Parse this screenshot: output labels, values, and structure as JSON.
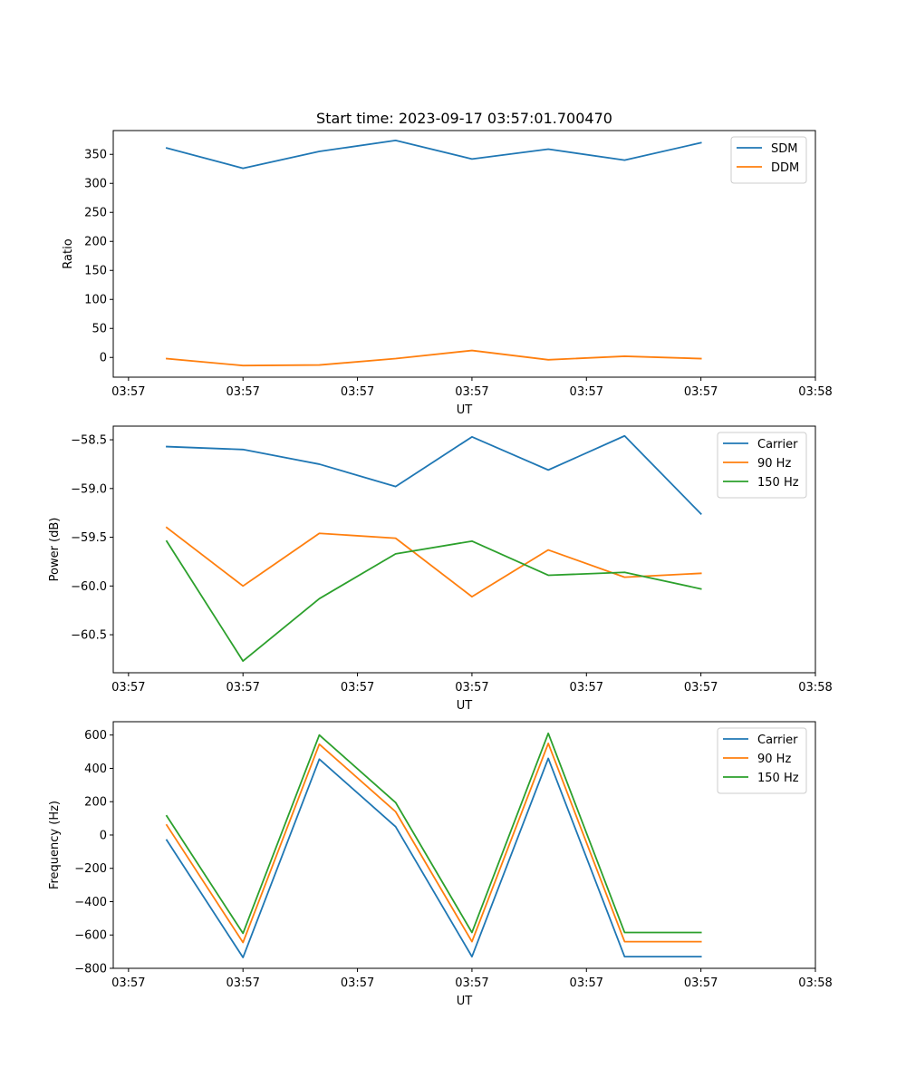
{
  "figure": {
    "title": "Start time: 2023-09-17 03:57:01.700470"
  },
  "chart_data": [
    {
      "type": "line",
      "title": "Start time: 2023-09-17 03:57:01.700470",
      "xlabel": "UT",
      "ylabel": "Ratio",
      "x": [
        0.5,
        1.5,
        2.5,
        3.5,
        4.5,
        5.5,
        6.5,
        7.5
      ],
      "xlim": [
        -0.2,
        9.0
      ],
      "xticks": [
        0,
        1.5,
        3,
        4.5,
        6,
        7.5,
        9
      ],
      "xtick_labels": [
        "03:57",
        "03:57",
        "03:57",
        "03:57",
        "03:57",
        "03:57",
        "03:58"
      ],
      "ylim": [
        -34,
        391
      ],
      "yticks": [
        0,
        50,
        100,
        150,
        200,
        250,
        300,
        350
      ],
      "ytick_labels": [
        "0",
        "50",
        "100",
        "150",
        "200",
        "250",
        "300",
        "350"
      ],
      "grid": false,
      "legend_position": "top-right",
      "series": [
        {
          "name": "SDM",
          "color": "#1f77b4",
          "values": [
            361,
            326,
            355,
            374,
            342,
            359,
            340,
            370
          ]
        },
        {
          "name": "DDM",
          "color": "#ff7f0e",
          "values": [
            -2,
            -14,
            -13,
            -2,
            12,
            -4,
            2,
            -2
          ]
        }
      ]
    },
    {
      "type": "line",
      "title": "",
      "xlabel": "UT",
      "ylabel": "Power (dB)",
      "x": [
        0.5,
        1.5,
        2.5,
        3.5,
        4.5,
        5.5,
        6.5,
        7.5
      ],
      "xlim": [
        -0.2,
        9.0
      ],
      "xticks": [
        0,
        1.5,
        3,
        4.5,
        6,
        7.5,
        9
      ],
      "xtick_labels": [
        "03:57",
        "03:57",
        "03:57",
        "03:57",
        "03:57",
        "03:57",
        "03:58"
      ],
      "ylim": [
        -60.89,
        -58.36
      ],
      "yticks": [
        -58.5,
        -59.0,
        -59.5,
        -60.0,
        -60.5
      ],
      "ytick_labels": [
        "−58.5",
        "−59.0",
        "−59.5",
        "−60.0",
        "−60.5"
      ],
      "grid": false,
      "legend_position": "top-right",
      "series": [
        {
          "name": "Carrier",
          "color": "#1f77b4",
          "values": [
            -58.57,
            -58.6,
            -58.75,
            -58.98,
            -58.47,
            -58.81,
            -58.46,
            -59.26
          ]
        },
        {
          "name": "90 Hz",
          "color": "#ff7f0e",
          "values": [
            -59.4,
            -60.0,
            -59.46,
            -59.51,
            -60.11,
            -59.63,
            -59.91,
            -59.87
          ]
        },
        {
          "name": "150 Hz",
          "color": "#2ca02c",
          "values": [
            -59.54,
            -60.77,
            -60.13,
            -59.67,
            -59.54,
            -59.89,
            -59.86,
            -60.03
          ]
        }
      ]
    },
    {
      "type": "line",
      "title": "",
      "xlabel": "UT",
      "ylabel": "Frequency (Hz)",
      "x": [
        0.5,
        1.5,
        2.5,
        3.5,
        4.5,
        5.5,
        6.5,
        7.5
      ],
      "xlim": [
        -0.2,
        9.0
      ],
      "xticks": [
        0,
        1.5,
        3,
        4.5,
        6,
        7.5,
        9
      ],
      "xtick_labels": [
        "03:57",
        "03:57",
        "03:57",
        "03:57",
        "03:57",
        "03:57",
        "03:58"
      ],
      "ylim": [
        -800,
        680
      ],
      "yticks": [
        600,
        400,
        200,
        0,
        -200,
        -400,
        -600,
        -800
      ],
      "ytick_labels": [
        "600",
        "400",
        "200",
        "0",
        "−200",
        "−400",
        "−600",
        "−800"
      ],
      "grid": false,
      "legend_position": "top-right",
      "series": [
        {
          "name": "Carrier",
          "color": "#1f77b4",
          "values": [
            -30,
            -735,
            455,
            50,
            -730,
            460,
            -730,
            -730
          ]
        },
        {
          "name": "90 Hz",
          "color": "#ff7f0e",
          "values": [
            60,
            -645,
            545,
            140,
            -640,
            550,
            -640,
            -640
          ]
        },
        {
          "name": "150 Hz",
          "color": "#2ca02c",
          "values": [
            115,
            -590,
            600,
            195,
            -585,
            610,
            -585,
            -585
          ]
        }
      ]
    }
  ]
}
